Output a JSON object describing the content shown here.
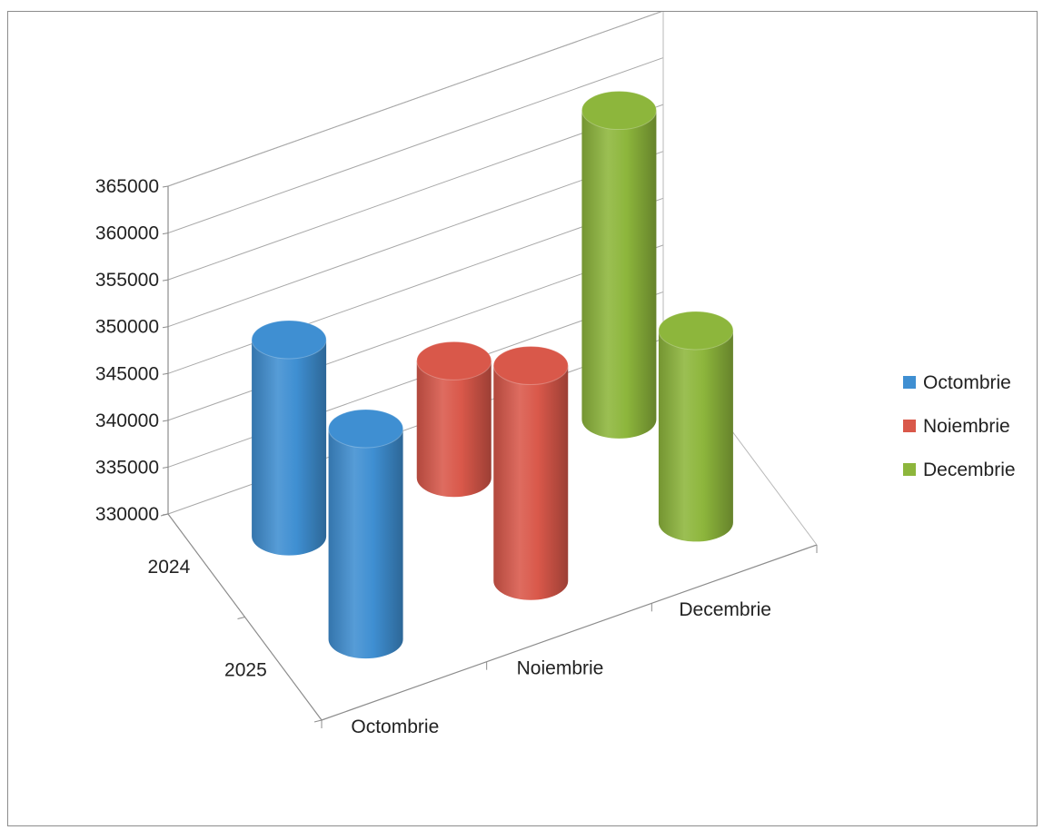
{
  "chart_data": {
    "type": "bar",
    "shape": "3d-cylinder",
    "categories": [
      "Octombrie",
      "Noiembrie",
      "Decembrie"
    ],
    "depth_categories": [
      "2024",
      "2025"
    ],
    "series": [
      {
        "name": "Octombrie",
        "color": "#3f8fd2",
        "values": [
          {
            "category": "Octombrie",
            "depth": "2024",
            "value": 351000
          },
          {
            "category": "Octombrie",
            "depth": "2025",
            "value": 352500
          }
        ]
      },
      {
        "name": "Noiembrie",
        "color": "#d9584a",
        "values": [
          {
            "category": "Noiembrie",
            "depth": "2024",
            "value": 342500
          },
          {
            "category": "Noiembrie",
            "depth": "2025",
            "value": 353000
          }
        ]
      },
      {
        "name": "Decembrie",
        "color": "#8db63c",
        "values": [
          {
            "category": "Decembrie",
            "depth": "2024",
            "value": 363000
          },
          {
            "category": "Decembrie",
            "depth": "2025",
            "value": 350500
          }
        ]
      }
    ],
    "y_ticks": [
      "330000",
      "335000",
      "340000",
      "345000",
      "350000",
      "355000",
      "360000",
      "365000"
    ],
    "ylim": [
      330000,
      365000
    ],
    "title": "",
    "xlabel": "",
    "ylabel": "",
    "grid": true,
    "legend_position": "right"
  }
}
